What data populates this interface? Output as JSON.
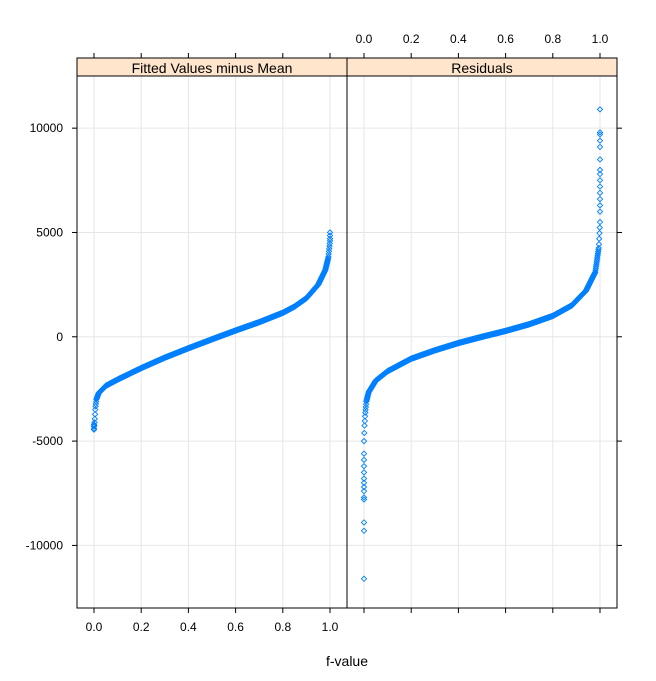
{
  "chart_data": {
    "type": "scatter",
    "layout": "two side-by-side panels with shared y-axis (lattice residual-fit spread plot)",
    "xlabel": "f-value",
    "ylabel": "",
    "xlim": [
      0,
      1
    ],
    "ylim": [
      -13000,
      12500
    ],
    "x_ticks": [
      "0.0",
      "0.2",
      "0.4",
      "0.6",
      "0.8",
      "1.0"
    ],
    "y_ticks": [
      "-10000",
      "-5000",
      "0",
      "5000",
      "10000"
    ],
    "grid": true,
    "marker": "open diamond",
    "colors": {
      "points": "#0080ff",
      "strip": "#ffe5cc",
      "grid": "#e6e6e6",
      "frame": "#000000"
    },
    "panels": [
      {
        "name": "Fitted Values minus Mean",
        "quantile_curve": [
          [
            0.0,
            -4400
          ],
          [
            0.003,
            -4000
          ],
          [
            0.006,
            -3400
          ],
          [
            0.01,
            -3000
          ],
          [
            0.02,
            -2700
          ],
          [
            0.05,
            -2350
          ],
          [
            0.1,
            -2050
          ],
          [
            0.2,
            -1500
          ],
          [
            0.3,
            -1000
          ],
          [
            0.4,
            -550
          ],
          [
            0.5,
            -120
          ],
          [
            0.6,
            300
          ],
          [
            0.7,
            700
          ],
          [
            0.8,
            1150
          ],
          [
            0.85,
            1450
          ],
          [
            0.9,
            1850
          ],
          [
            0.95,
            2500
          ],
          [
            0.98,
            3200
          ],
          [
            0.993,
            3800
          ],
          [
            1.0,
            4600
          ]
        ],
        "extreme_points": [
          [
            0.0,
            -4450
          ],
          [
            0.0,
            -4300
          ],
          [
            0.0,
            -4200
          ],
          [
            1.0,
            4700
          ],
          [
            1.0,
            4850
          ],
          [
            1.0,
            5000
          ]
        ]
      },
      {
        "name": "Residuals",
        "quantile_curve": [
          [
            0.0,
            -5000
          ],
          [
            0.002,
            -4300
          ],
          [
            0.005,
            -3700
          ],
          [
            0.01,
            -3100
          ],
          [
            0.02,
            -2650
          ],
          [
            0.05,
            -2100
          ],
          [
            0.1,
            -1650
          ],
          [
            0.2,
            -1050
          ],
          [
            0.3,
            -650
          ],
          [
            0.4,
            -300
          ],
          [
            0.5,
            0
          ],
          [
            0.6,
            280
          ],
          [
            0.7,
            600
          ],
          [
            0.8,
            1000
          ],
          [
            0.88,
            1500
          ],
          [
            0.94,
            2200
          ],
          [
            0.98,
            3100
          ],
          [
            0.995,
            4300
          ],
          [
            1.0,
            5500
          ]
        ],
        "extreme_points": [
          [
            0.0,
            -11600
          ],
          [
            0.0,
            -9300
          ],
          [
            0.0,
            -8900
          ],
          [
            0.0,
            -7800
          ],
          [
            0.0,
            -7700
          ],
          [
            0.0,
            -7400
          ],
          [
            0.0,
            -7200
          ],
          [
            0.0,
            -7000
          ],
          [
            0.0,
            -6800
          ],
          [
            0.0,
            -6500
          ],
          [
            0.0,
            -6200
          ],
          [
            0.0,
            -5900
          ],
          [
            0.0,
            -5600
          ],
          [
            1.0,
            6000
          ],
          [
            1.0,
            6300
          ],
          [
            1.0,
            6600
          ],
          [
            1.0,
            6900
          ],
          [
            1.0,
            7200
          ],
          [
            1.0,
            7500
          ],
          [
            1.0,
            7800
          ],
          [
            1.0,
            8000
          ],
          [
            1.0,
            8500
          ],
          [
            1.0,
            9100
          ],
          [
            1.0,
            9400
          ],
          [
            1.0,
            9700
          ],
          [
            1.0,
            9800
          ],
          [
            1.0,
            10900
          ]
        ]
      }
    ]
  }
}
